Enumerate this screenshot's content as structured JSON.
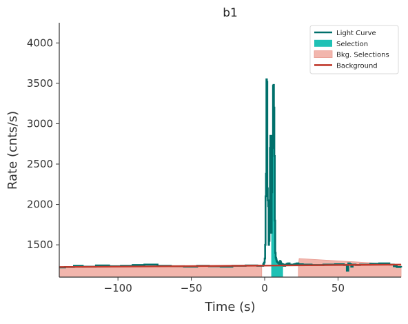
{
  "chart_data": {
    "type": "line",
    "title": "b1",
    "xlabel": "Time (s)",
    "ylabel": "Rate (cnts/s)",
    "xlim": [
      -140,
      93
    ],
    "ylim": [
      1100,
      4250
    ],
    "xticks": [
      -100,
      -50,
      0,
      50
    ],
    "yticks": [
      1500,
      2000,
      2500,
      3000,
      3500,
      4000
    ],
    "grid": false,
    "legend_position": "top-right",
    "legend": [
      {
        "label": "Light Curve",
        "kind": "line",
        "color": "#00706b"
      },
      {
        "label": "Selection",
        "kind": "patch",
        "color": "#1fc1b5"
      },
      {
        "label": "Bkg. Selections",
        "kind": "patch",
        "color": "#f2b6ad"
      },
      {
        "label": "Background",
        "kind": "line",
        "color": "#c0392b"
      }
    ],
    "colors": {
      "light_curve": "#00706b",
      "selection": "#1fc1b5",
      "bkg_selection_fill": "#f2b6ad",
      "bkg_selection_edge": "#e89c92",
      "background": "#c0392b"
    },
    "light_curve": {
      "name": "Light Curve",
      "x": [
        -140,
        -136,
        -130,
        -124,
        -115,
        -106,
        -98,
        -90,
        -82,
        -73,
        -64,
        -55,
        -46,
        -38,
        -30,
        -22,
        -13,
        -5,
        -1,
        -0.5,
        0,
        0.3,
        0.6,
        0.9,
        1.2,
        1.5,
        1.8,
        2.1,
        2.4,
        2.7,
        3.0,
        3.3,
        3.6,
        3.9,
        4.2,
        4.5,
        4.8,
        5.1,
        5.4,
        5.7,
        6.0,
        6.3,
        6.6,
        6.9,
        7.2,
        7.5,
        7.8,
        8.1,
        8.4,
        8.7,
        9.0,
        9.3,
        9.6,
        9.9,
        10.2,
        10.5,
        10.8,
        11.1,
        11.4,
        11.7,
        12.0,
        12.5,
        13,
        14,
        15,
        16,
        17,
        18,
        19,
        20,
        21,
        22,
        23,
        26,
        32,
        40,
        48,
        54,
        56,
        57,
        58,
        59,
        60,
        62,
        65,
        72,
        78,
        85,
        88,
        90,
        93
      ],
      "y": [
        1220,
        1225,
        1240,
        1230,
        1245,
        1235,
        1240,
        1250,
        1255,
        1240,
        1235,
        1230,
        1240,
        1235,
        1230,
        1240,
        1245,
        1240,
        1260,
        1280,
        1330,
        1500,
        2100,
        2380,
        3550,
        3520,
        2200,
        2050,
        1980,
        1500,
        1550,
        1900,
        2700,
        2850,
        2600,
        1650,
        2150,
        2850,
        2700,
        3470,
        3480,
        3200,
        2600,
        1800,
        1400,
        1340,
        1320,
        1300,
        1290,
        1285,
        1280,
        1275,
        1270,
        1265,
        1280,
        1300,
        1285,
        1270,
        1260,
        1265,
        1260,
        1255,
        1240,
        1255,
        1265,
        1270,
        1255,
        1250,
        1255,
        1260,
        1265,
        1270,
        1260,
        1255,
        1250,
        1255,
        1260,
        1250,
        1180,
        1270,
        1260,
        1230,
        1255,
        1250,
        1255,
        1265,
        1270,
        1255,
        1235,
        1225,
        1220
      ]
    },
    "selection": {
      "name": "Selection",
      "x_start": 4.5,
      "x_end": 12.5
    },
    "bkg_selections": [
      {
        "x_start": -140,
        "x_end": -2
      },
      {
        "x_start": 23,
        "x_end": 93
      }
    ],
    "background": {
      "name": "Background",
      "x": [
        -140,
        93
      ],
      "y": [
        1225,
        1255
      ]
    }
  }
}
